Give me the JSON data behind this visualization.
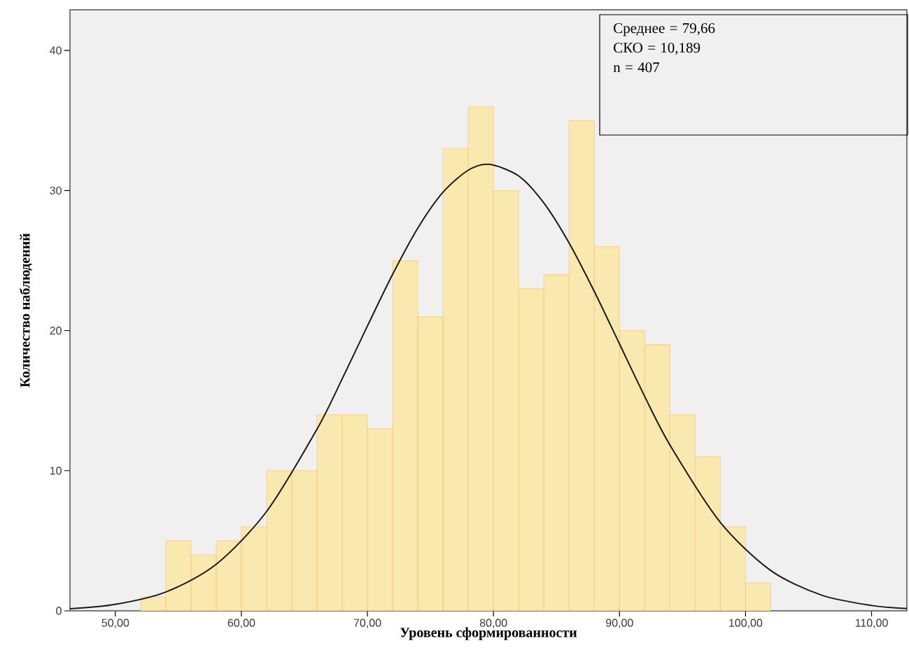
{
  "chart_data": {
    "type": "histogram",
    "xlabel": "Уровень сформированности",
    "ylabel": "Количество наблюдений",
    "bins": [
      52,
      54,
      56,
      58,
      60,
      62,
      64,
      66,
      68,
      70,
      72,
      74,
      76,
      78,
      80,
      82,
      84,
      86,
      88,
      90,
      92,
      94,
      96,
      98,
      100,
      102
    ],
    "values": [
      1,
      5,
      4,
      5,
      6,
      10,
      10,
      14,
      14,
      13,
      25,
      21,
      33,
      36,
      30,
      23,
      24,
      35,
      26,
      20,
      19,
      14,
      11,
      6,
      2
    ],
    "color": "#fae9af",
    "series": [
      {
        "type": "line",
        "color": "#1a1a1a",
        "x": [
          46.4,
          50,
          54,
          58,
          62,
          66,
          68,
          70,
          72,
          74,
          76,
          78,
          79.66,
          82,
          84,
          86,
          88,
          90,
          92,
          94,
          98,
          102,
          106,
          110,
          112.8
        ],
        "values": [
          0.15,
          0.46,
          1.34,
          3.32,
          7.09,
          12.97,
          16.56,
          20.33,
          24.02,
          27.32,
          29.88,
          31.45,
          31.87,
          31.04,
          29.11,
          26.26,
          22.8,
          19.05,
          15.3,
          11.84,
          6.31,
          2.88,
          1.13,
          0.38,
          0.16
        ]
      }
    ],
    "xlim": [
      46.4,
      112.8
    ],
    "ylim": [
      0,
      42.9
    ],
    "xticks": [
      {
        "value": 50,
        "label": "50,00"
      },
      {
        "value": 60,
        "label": "60,00"
      },
      {
        "value": 70,
        "label": "70,00"
      },
      {
        "value": 80,
        "label": "80,00"
      },
      {
        "value": 90,
        "label": "90,00"
      },
      {
        "value": 100,
        "label": "100,00"
      },
      {
        "value": 110,
        "label": "110,00"
      }
    ],
    "yticks": [
      0,
      10,
      20,
      30,
      40
    ],
    "annotations": [
      "Среднее = 79,66",
      "СКО = 10,189",
      "n = 407"
    ]
  }
}
